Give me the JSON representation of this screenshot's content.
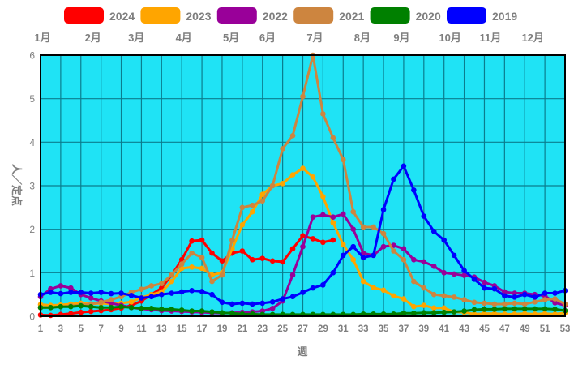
{
  "chart_data": {
    "type": "line",
    "title": "",
    "xlabel": "週",
    "ylabel": "人／定点",
    "xlim": [
      1,
      53
    ],
    "ylim": [
      0,
      6
    ],
    "x_ticks": [
      1,
      3,
      5,
      7,
      9,
      11,
      13,
      15,
      17,
      19,
      21,
      23,
      25,
      27,
      29,
      31,
      33,
      35,
      37,
      39,
      41,
      43,
      45,
      47,
      49,
      51,
      53
    ],
    "y_ticks": [
      0,
      1,
      2,
      3,
      4,
      5,
      6
    ],
    "grid": true,
    "legend_position": "top",
    "marker": "circle",
    "months": [
      {
        "label": "1月",
        "week": 1.2
      },
      {
        "label": "2月",
        "week": 6.2
      },
      {
        "label": "3月",
        "week": 10.5
      },
      {
        "label": "4月",
        "week": 15.2
      },
      {
        "label": "5月",
        "week": 19.9
      },
      {
        "label": "6月",
        "week": 23.5
      },
      {
        "label": "7月",
        "week": 28.2
      },
      {
        "label": "8月",
        "week": 32.9
      },
      {
        "label": "9月",
        "week": 36.8
      },
      {
        "label": "10月",
        "week": 41.6
      },
      {
        "label": "11月",
        "week": 45.6
      },
      {
        "label": "12月",
        "week": 49.8
      }
    ],
    "x": [
      1,
      2,
      3,
      4,
      5,
      6,
      7,
      8,
      9,
      10,
      11,
      12,
      13,
      14,
      15,
      16,
      17,
      18,
      19,
      20,
      21,
      22,
      23,
      24,
      25,
      26,
      27,
      28,
      29,
      30,
      31,
      32,
      33,
      34,
      35,
      36,
      37,
      38,
      39,
      40,
      41,
      42,
      43,
      44,
      45,
      46,
      47,
      48,
      49,
      50,
      51,
      52,
      53
    ],
    "series": [
      {
        "name": "2024",
        "color": "#ff0000",
        "values": [
          0.03,
          0.02,
          0.04,
          0.06,
          0.09,
          0.11,
          0.13,
          0.15,
          0.19,
          0.25,
          0.35,
          0.5,
          0.65,
          0.95,
          1.3,
          1.73,
          1.75,
          1.45,
          1.27,
          1.45,
          1.5,
          1.3,
          1.33,
          1.27,
          1.25,
          1.55,
          1.85,
          1.78,
          1.7,
          1.75
        ]
      },
      {
        "name": "2023",
        "color": "#ffa500",
        "values": [
          0.27,
          0.25,
          0.26,
          0.28,
          0.3,
          0.28,
          0.3,
          0.28,
          0.3,
          0.33,
          0.43,
          0.5,
          0.56,
          0.8,
          1.1,
          1.13,
          1.1,
          0.95,
          1.0,
          1.55,
          2.1,
          2.4,
          2.8,
          3.0,
          3.05,
          3.25,
          3.4,
          3.2,
          2.75,
          2.15,
          1.65,
          1.3,
          0.8,
          0.66,
          0.6,
          0.47,
          0.4,
          0.22,
          0.25,
          0.19,
          0.19,
          0.1,
          0.09,
          0.05,
          0.06,
          0.06,
          0.05,
          0.05,
          0.06,
          0.05,
          0.06,
          0.05,
          0.08
        ]
      },
      {
        "name": "2022",
        "color": "#990099",
        "values": [
          0.45,
          0.63,
          0.7,
          0.65,
          0.5,
          0.42,
          0.35,
          0.3,
          0.25,
          0.2,
          0.17,
          0.15,
          0.13,
          0.12,
          0.11,
          0.1,
          0.09,
          0.08,
          0.07,
          0.08,
          0.09,
          0.1,
          0.12,
          0.18,
          0.35,
          0.95,
          1.6,
          2.28,
          2.33,
          2.28,
          2.35,
          2.0,
          1.45,
          1.4,
          1.6,
          1.63,
          1.55,
          1.3,
          1.25,
          1.15,
          1.0,
          0.97,
          0.94,
          0.9,
          0.78,
          0.7,
          0.56,
          0.53,
          0.53,
          0.5,
          0.47,
          0.31,
          0.25
        ]
      },
      {
        "name": "2021",
        "color": "#cd853f",
        "values": [
          0.2,
          0.2,
          0.22,
          0.24,
          0.26,
          0.28,
          0.32,
          0.38,
          0.45,
          0.55,
          0.62,
          0.7,
          0.75,
          0.95,
          1.2,
          1.45,
          1.35,
          0.8,
          0.95,
          1.75,
          2.5,
          2.55,
          2.65,
          3.0,
          3.85,
          4.15,
          5.05,
          6.0,
          4.65,
          4.1,
          3.6,
          2.4,
          2.05,
          2.05,
          1.9,
          1.5,
          1.3,
          0.8,
          0.65,
          0.5,
          0.47,
          0.44,
          0.38,
          0.32,
          0.3,
          0.28,
          0.28,
          0.3,
          0.28,
          0.33,
          0.38,
          0.4,
          0.28
        ]
      },
      {
        "name": "2020",
        "color": "#008000",
        "values": [
          0.2,
          0.2,
          0.22,
          0.22,
          0.24,
          0.22,
          0.2,
          0.2,
          0.22,
          0.2,
          0.18,
          0.18,
          0.16,
          0.16,
          0.14,
          0.12,
          0.12,
          0.1,
          0.08,
          0.07,
          0.05,
          0.05,
          0.04,
          0.04,
          0.04,
          0.04,
          0.04,
          0.04,
          0.04,
          0.04,
          0.04,
          0.04,
          0.05,
          0.05,
          0.05,
          0.05,
          0.07,
          0.07,
          0.08,
          0.08,
          0.09,
          0.1,
          0.12,
          0.15,
          0.16,
          0.16,
          0.17,
          0.17,
          0.17,
          0.17,
          0.17,
          0.16,
          0.13
        ]
      },
      {
        "name": "2019",
        "color": "#0000ff",
        "values": [
          0.5,
          0.55,
          0.52,
          0.55,
          0.55,
          0.53,
          0.55,
          0.52,
          0.53,
          0.48,
          0.42,
          0.45,
          0.5,
          0.53,
          0.56,
          0.59,
          0.57,
          0.5,
          0.32,
          0.28,
          0.3,
          0.28,
          0.3,
          0.33,
          0.4,
          0.45,
          0.55,
          0.65,
          0.72,
          1.0,
          1.4,
          1.6,
          1.35,
          1.4,
          2.45,
          3.15,
          3.45,
          2.9,
          2.3,
          1.95,
          1.75,
          1.4,
          1.05,
          0.85,
          0.65,
          0.63,
          0.47,
          0.44,
          0.5,
          0.44,
          0.53,
          0.53,
          0.59
        ]
      }
    ]
  },
  "style": {
    "page_bg": "#ffffff",
    "plot_bg": "#1fe3f5",
    "grid_line": "#0b7d8e",
    "axis_border": "#000000",
    "label_color": "#7f7f7f"
  }
}
